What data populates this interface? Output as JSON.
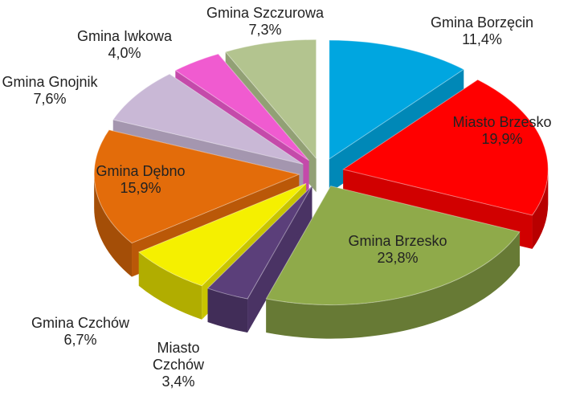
{
  "chart_data": {
    "type": "pie",
    "categories": [
      "Gmina Borzęcin",
      "Miasto Brzesko",
      "Gmina Brzesko",
      "Miasto Czchów",
      "Gmina Czchów",
      "Gmina Dębno",
      "Gmina Gnojnik",
      "Gmina Iwkowa",
      "Gmina Szczurowa"
    ],
    "values": [
      11.4,
      19.9,
      23.8,
      3.4,
      6.7,
      15.9,
      7.6,
      4.0,
      7.3
    ],
    "value_labels": [
      "11,4%",
      "19,9%",
      "23,8%",
      "3,4%",
      "6,7%",
      "15,9%",
      "7,6%",
      "4,0%",
      "7,3%"
    ],
    "colors": [
      "#00a6e0",
      "#ff0000",
      "#8faa4a",
      "#5b3f7a",
      "#f5f000",
      "#e36c0a",
      "#c9b8d6",
      "#f05bd0",
      "#b3c48f"
    ]
  }
}
